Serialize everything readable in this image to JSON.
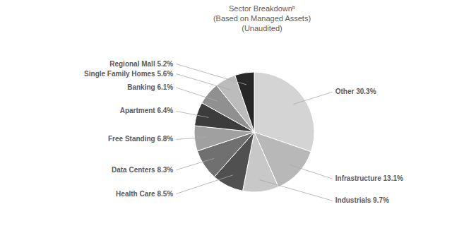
{
  "chart_data": {
    "type": "pie",
    "title": "Sector Breakdownᵇ\n(Based on Managed Assets)\n(Unaudited)",
    "categories": [
      "Other",
      "Infrastructure",
      "Industrials",
      "Health Care",
      "Data Centers",
      "Free Standing",
      "Apartment",
      "Banking",
      "Single Family Homes",
      "Regional Mall"
    ],
    "values": [
      30.3,
      13.1,
      9.7,
      8.5,
      8.3,
      6.8,
      6.4,
      6.1,
      5.6,
      5.2
    ],
    "value_labels": [
      "30.3%",
      "13.1%",
      "9.7%",
      "8.5%",
      "8.3%",
      "6.8%",
      "6.4%",
      "6.1%",
      "5.6%",
      "5.2%"
    ],
    "colors": [
      "#d4d4d4",
      "#b8b8b8",
      "#c8c8c8",
      "#505050",
      "#707070",
      "#a0a0a0",
      "#3c3c3c",
      "#909090",
      "#bcbcbc",
      "#282828"
    ],
    "data_labels": true
  }
}
